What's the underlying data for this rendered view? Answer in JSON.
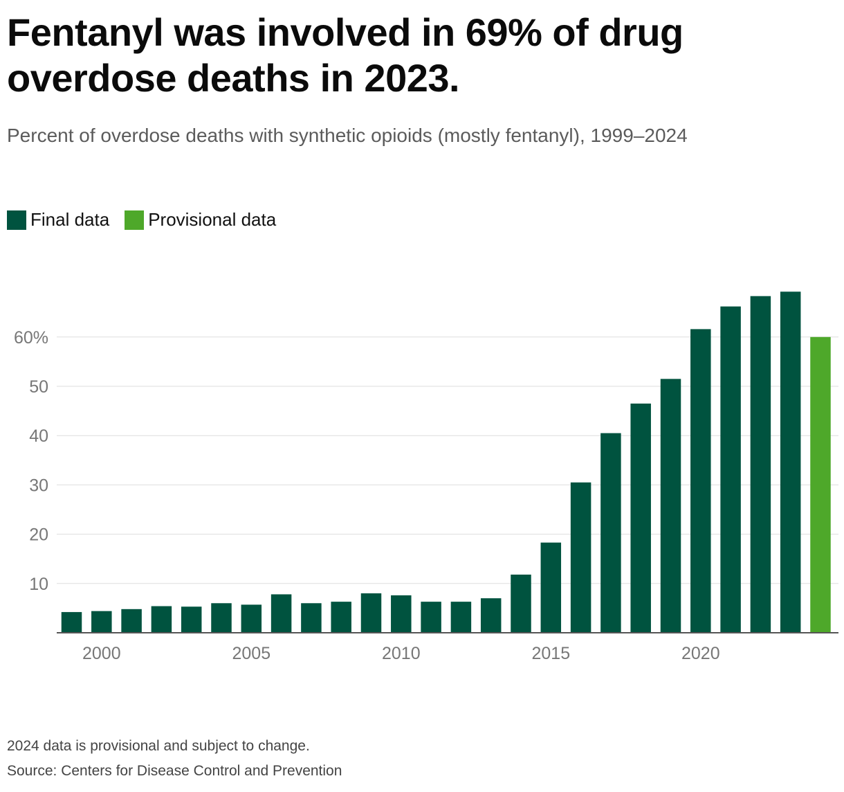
{
  "title": "Fentanyl was involved in 69% of drug overdose deaths in 2023.",
  "subtitle": "Percent of overdose deaths with synthetic opioids (mostly fentanyl), 1999–2024",
  "legend": [
    {
      "label": "Final data",
      "color": "#00533f"
    },
    {
      "label": "Provisional data",
      "color": "#4ea82a"
    }
  ],
  "footnotes": {
    "note": "2024 data is provisional and subject to change.",
    "source": "Source: Centers for Disease Control and Prevention"
  },
  "chart_data": {
    "type": "bar",
    "title": "Fentanyl was involved in 69% of drug overdose deaths in 2023.",
    "xlabel": "",
    "ylabel": "",
    "ylim": [
      0,
      72
    ],
    "yticks": [
      10,
      20,
      30,
      40,
      50,
      60
    ],
    "ytick_labels": [
      "10",
      "20",
      "30",
      "40",
      "50",
      "60%"
    ],
    "xtick_labels": [
      "2000",
      "2005",
      "2010",
      "2015",
      "2020"
    ],
    "categories": [
      1999,
      2000,
      2001,
      2002,
      2003,
      2004,
      2005,
      2006,
      2007,
      2008,
      2009,
      2010,
      2011,
      2012,
      2013,
      2014,
      2015,
      2016,
      2017,
      2018,
      2019,
      2020,
      2021,
      2022,
      2023,
      2024
    ],
    "values": [
      4.2,
      4.4,
      4.8,
      5.4,
      5.3,
      6.0,
      5.7,
      7.8,
      6.0,
      6.3,
      8.0,
      7.6,
      6.3,
      6.3,
      7.0,
      11.8,
      18.3,
      30.5,
      40.5,
      46.5,
      51.5,
      61.6,
      66.2,
      68.3,
      69.2,
      60.0
    ],
    "provisional": [
      false,
      false,
      false,
      false,
      false,
      false,
      false,
      false,
      false,
      false,
      false,
      false,
      false,
      false,
      false,
      false,
      false,
      false,
      false,
      false,
      false,
      false,
      false,
      false,
      false,
      true
    ],
    "colors": {
      "final": "#00533f",
      "provisional": "#4ea82a",
      "grid": "#dddddd",
      "axis": "#555555",
      "tick_text": "#777777"
    }
  }
}
